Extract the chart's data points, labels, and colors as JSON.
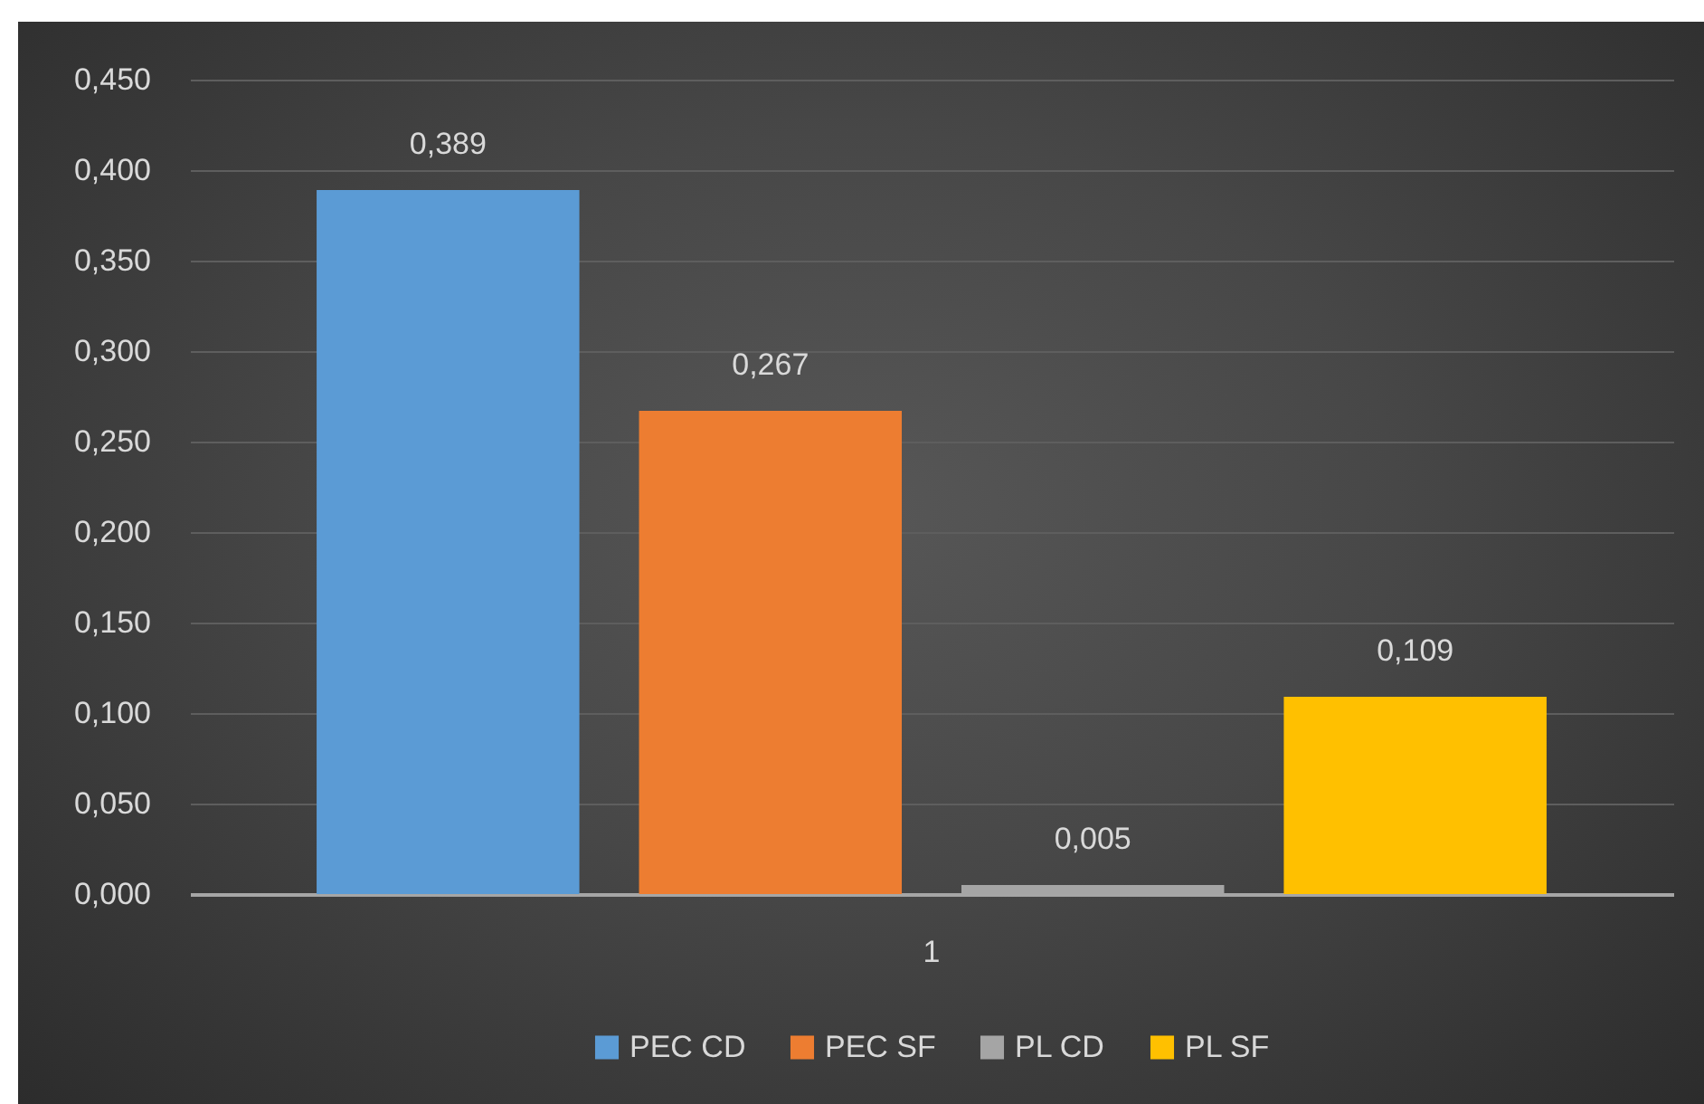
{
  "chart_data": {
    "type": "bar",
    "categories": [
      "1"
    ],
    "series": [
      {
        "name": "PEC CD",
        "color": "#5b9bd5",
        "values": [
          0.389
        ],
        "value_labels": [
          "0,389"
        ]
      },
      {
        "name": "PEC SF",
        "color": "#ed7d31",
        "values": [
          0.267
        ],
        "value_labels": [
          "0,267"
        ]
      },
      {
        "name": "PL CD",
        "color": "#a5a5a5",
        "values": [
          0.005
        ],
        "value_labels": [
          "0,005"
        ]
      },
      {
        "name": "PL SF",
        "color": "#ffc000",
        "values": [
          0.109
        ],
        "value_labels": [
          "0,109"
        ]
      }
    ],
    "ylim": [
      0,
      0.45
    ],
    "yticks": [
      {
        "value": 0,
        "label": "0,000"
      },
      {
        "value": 0.05,
        "label": "0,050"
      },
      {
        "value": 0.1,
        "label": "0,100"
      },
      {
        "value": 0.15,
        "label": "0,150"
      },
      {
        "value": 0.2,
        "label": "0,200"
      },
      {
        "value": 0.25,
        "label": "0,250"
      },
      {
        "value": 0.3,
        "label": "0,300"
      },
      {
        "value": 0.35,
        "label": "0,350"
      },
      {
        "value": 0.4,
        "label": "0,400"
      },
      {
        "value": 0.45,
        "label": "0,450"
      }
    ],
    "grid": "y",
    "legend": "bottom"
  }
}
